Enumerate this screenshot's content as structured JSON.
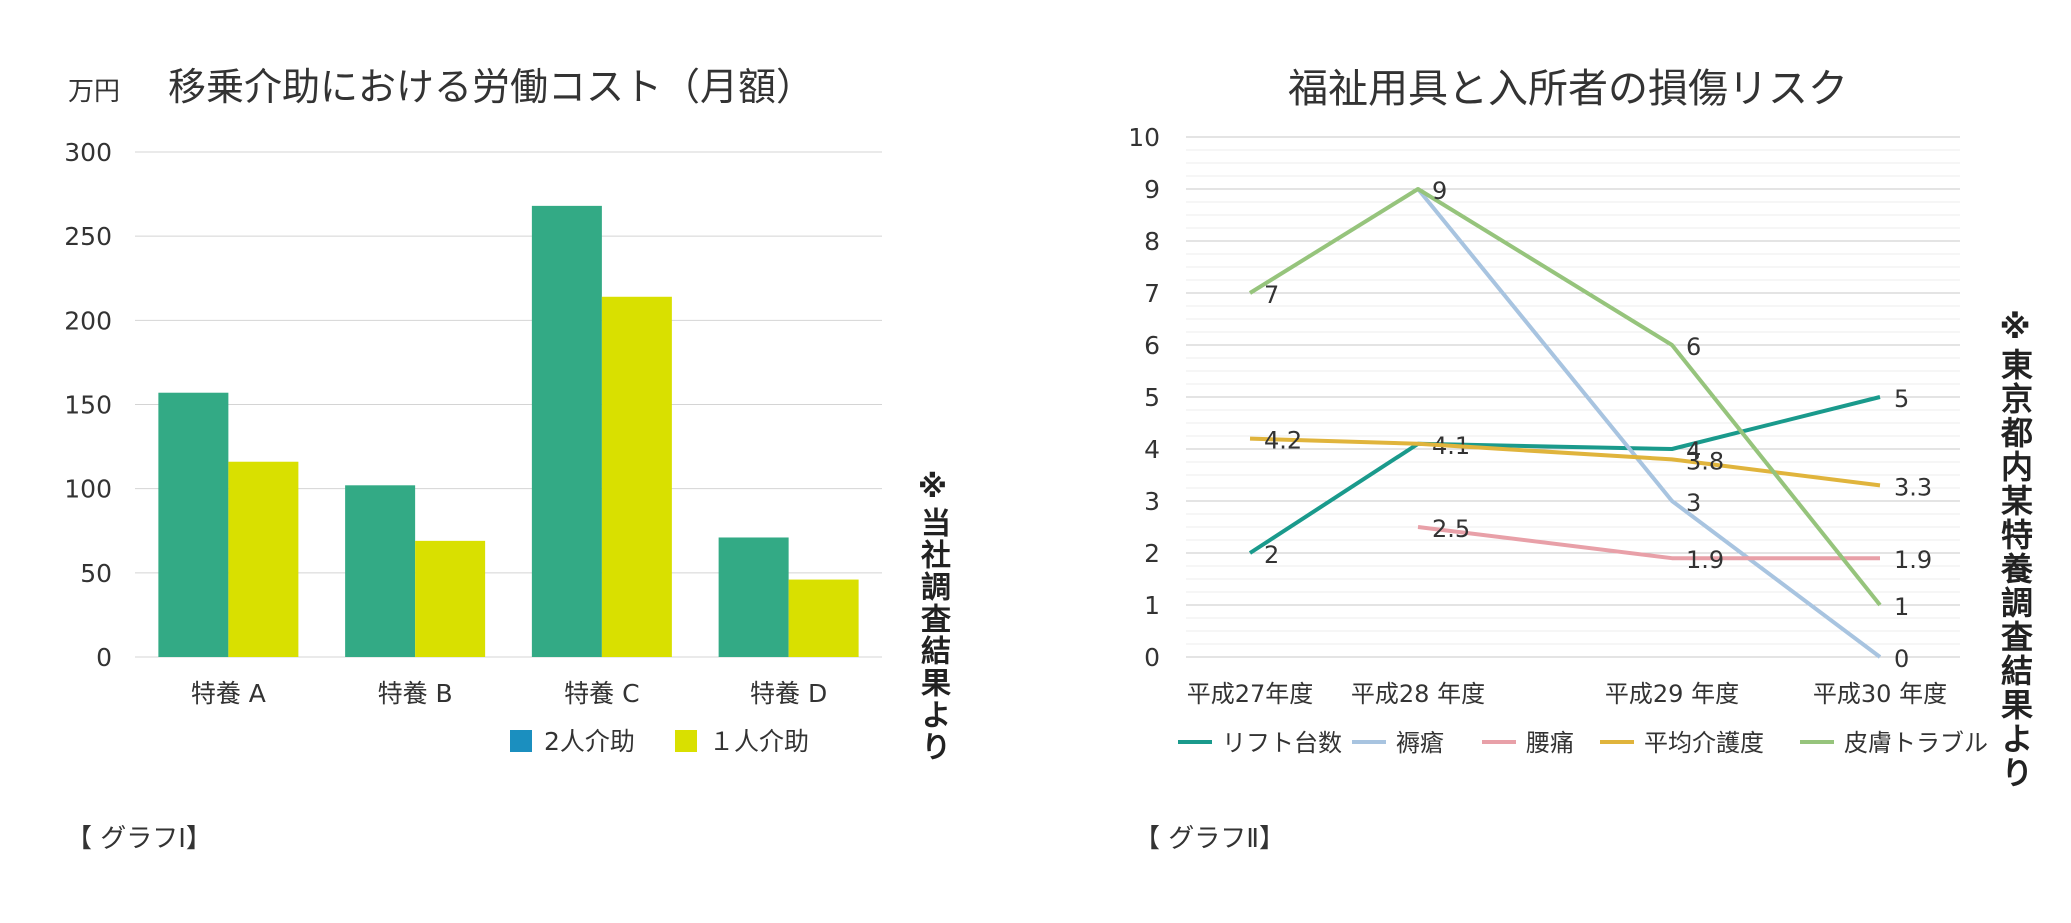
{
  "chart_data": [
    {
      "type": "bar",
      "title": "移乗介助における労働コスト（月額）",
      "unit_label": "万円",
      "categories": [
        "特養 A",
        "特養 B",
        "特養 C",
        "特養 D"
      ],
      "series": [
        {
          "name": "2人介助",
          "values": [
            157,
            102,
            268,
            71
          ],
          "color": "#33aa85",
          "legend_color": "#1b8fbf"
        },
        {
          "name": "１人介助",
          "values": [
            116,
            69,
            214,
            46
          ],
          "color": "#d9e000",
          "legend_color": "#d9e000"
        }
      ],
      "yticks": [
        "0",
        "50",
        "100",
        "150",
        "200",
        "250",
        "300"
      ],
      "ylim": [
        0,
        300
      ],
      "grid": true,
      "side_note": "※当社調査結果より",
      "caption": "【 グラフⅠ】"
    },
    {
      "type": "line",
      "title": "福祉用具と入所者の損傷リスク",
      "categories": [
        "平成27年度",
        "平成28 年度",
        "平成29 年度",
        "平成30 年度"
      ],
      "series": [
        {
          "name": "リフト台数",
          "color": "#1a9a8c",
          "values": [
            2,
            4.1,
            4,
            5
          ],
          "labels": [
            "2",
            "4.1",
            "4",
            "5"
          ]
        },
        {
          "name": "褥瘡",
          "color": "#a8c4e0",
          "values": [
            null,
            9,
            3,
            0
          ],
          "labels": [
            "",
            "",
            "3",
            "0"
          ]
        },
        {
          "name": "腰痛",
          "color": "#e8a0a8",
          "values": [
            null,
            2.5,
            1.9,
            1.9
          ],
          "labels": [
            "",
            "2.5",
            "1.9",
            "1.9"
          ]
        },
        {
          "name": "平均介護度",
          "color": "#e0b43c",
          "values": [
            4.2,
            4.1,
            3.8,
            3.3
          ],
          "labels": [
            "4.2",
            "",
            "3.8",
            "3.3"
          ]
        },
        {
          "name": "皮膚トラブル",
          "color": "#96c47c",
          "values": [
            7,
            9,
            6,
            1
          ],
          "labels": [
            "7",
            "9",
            "6",
            "1"
          ]
        }
      ],
      "yticks": [
        "0",
        "1",
        "2",
        "3",
        "4",
        "5",
        "6",
        "7",
        "8",
        "9",
        "10"
      ],
      "ylim": [
        0,
        10
      ],
      "grid": true,
      "side_note": "※東京都内某特養調査結果より",
      "caption": "【 グラフⅡ】"
    }
  ]
}
